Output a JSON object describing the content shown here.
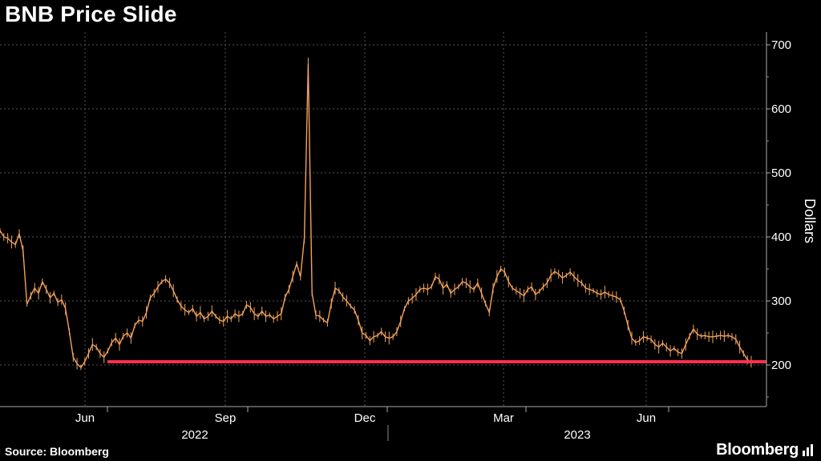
{
  "header": {
    "title": "BNB Price Slide"
  },
  "footer": {
    "source": "Source: Bloomberg",
    "brand": "Bloomberg"
  },
  "chart_data": {
    "type": "line",
    "ylabel": "Dollars",
    "ylim": [
      130,
      720
    ],
    "y_ticks": [
      200,
      300,
      400,
      500,
      600,
      700
    ],
    "x_ticks": [
      "Jun",
      "Sep",
      "Dec",
      "Mar",
      "Jun"
    ],
    "years": [
      "2022",
      "2023"
    ],
    "grid": true,
    "support_line": {
      "value": 205,
      "from_month": "Jun",
      "color": "#ff2f4e"
    },
    "line_color": "#f2a25c",
    "series": [
      {
        "values": [
          410,
          400,
          398,
          392,
          388,
          405,
          378,
          295,
          308,
          320,
          312,
          330,
          318,
          305,
          312,
          298,
          302,
          288,
          252,
          212,
          202,
          196,
          205,
          218,
          232,
          228,
          218,
          212,
          222,
          235,
          242,
          232,
          245,
          250,
          242,
          262,
          270,
          268,
          282,
          305,
          312,
          322,
          330,
          334,
          328,
          316,
          302,
          292,
          286,
          282,
          288,
          276,
          282,
          272,
          276,
          284,
          276,
          270,
          268,
          276,
          272,
          280,
          276,
          280,
          294,
          290,
          280,
          276,
          284,
          276,
          278,
          272,
          276,
          280,
          306,
          318,
          338,
          358,
          338,
          398,
          670,
          312,
          278,
          276,
          270,
          266,
          296,
          320,
          316,
          306,
          300,
          292,
          286,
          270,
          250,
          246,
          238,
          244,
          246,
          252,
          244,
          242,
          244,
          252,
          268,
          288,
          300,
          304,
          310,
          318,
          320,
          318,
          322,
          338,
          334,
          320,
          326,
          312,
          318,
          322,
          330,
          328,
          322,
          318,
          328,
          312,
          296,
          282,
          320,
          338,
          350,
          345,
          330,
          320,
          316,
          312,
          308,
          318,
          322,
          310,
          315,
          322,
          328,
          340,
          346,
          342,
          336,
          340,
          345,
          338,
          332,
          328,
          320,
          318,
          316,
          312,
          310,
          314,
          310,
          308,
          306,
          302,
          285,
          262,
          242,
          235,
          238,
          244,
          242,
          240,
          232,
          228,
          234,
          228,
          222,
          226,
          220,
          218,
          232,
          245,
          256,
          248,
          245,
          246,
          244,
          244,
          245,
          246,
          245,
          246,
          244,
          240,
          228,
          218,
          208,
          205
        ]
      }
    ]
  }
}
